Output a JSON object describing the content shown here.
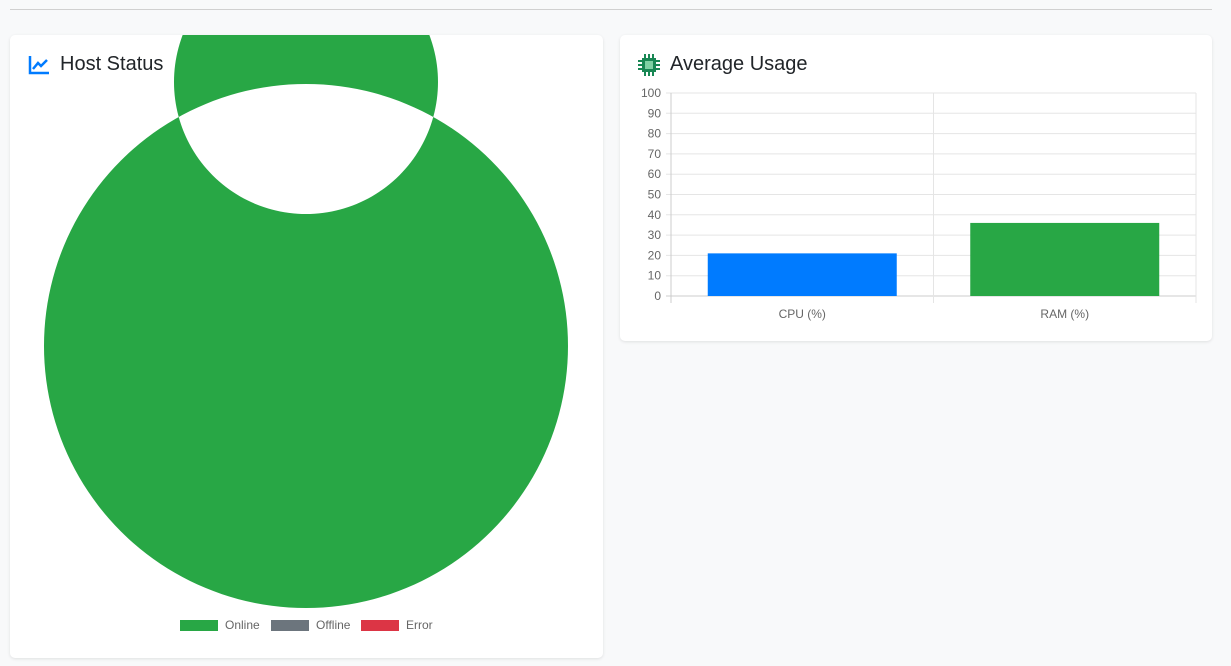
{
  "host_status": {
    "title": "Host Status",
    "icon": "chart-line-icon"
  },
  "average_usage": {
    "title": "Average Usage",
    "icon": "cpu-chip-icon"
  },
  "chart_data": [
    {
      "type": "pie",
      "title": "Host Status",
      "categories": [
        "Online",
        "Offline",
        "Error"
      ],
      "values": [
        1,
        0,
        0
      ],
      "colors": [
        "#28a745",
        "#6c757d",
        "#dc3545"
      ],
      "legend": "bottom"
    },
    {
      "type": "bar",
      "title": "Average Usage",
      "categories": [
        "CPU (%)",
        "RAM (%)"
      ],
      "values": [
        21,
        36
      ],
      "colors": [
        "#007bff",
        "#28a745"
      ],
      "ylim": [
        0,
        100
      ],
      "yticks": [
        0,
        10,
        20,
        30,
        40,
        50,
        60,
        70,
        80,
        90,
        100
      ],
      "grid": true
    }
  ]
}
